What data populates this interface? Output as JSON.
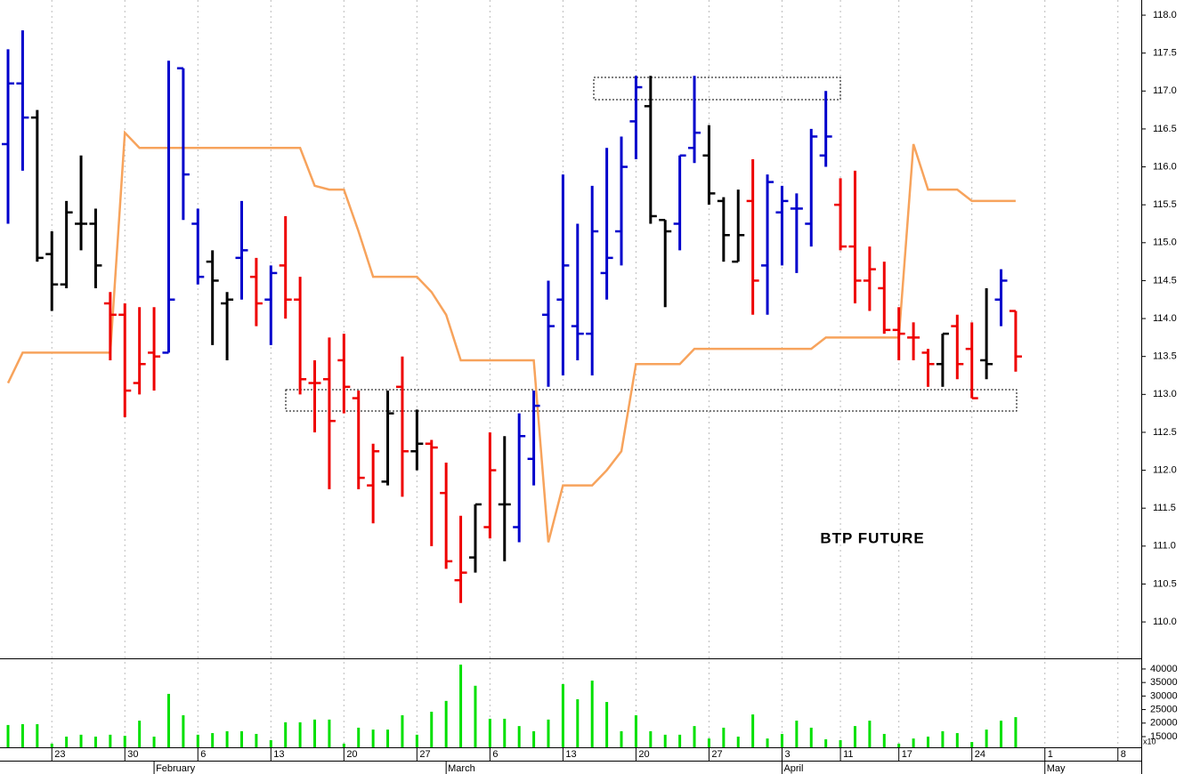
{
  "chart_data": [
    {
      "type": "ohlc",
      "annotation": "BTP FUTURE",
      "open": [
        116.3,
        117.1,
        116.65,
        114.85,
        114.45,
        115.25,
        115.25,
        114.2,
        114.05,
        113.15,
        113.55,
        113.55,
        117.3,
        115.25,
        114.75,
        114.2,
        114.8,
        114.55,
        114.25,
        114.7,
        114.25,
        113.15,
        113.2,
        113.45,
        112.95,
        111.8,
        111.85,
        113.1,
        112.25,
        112.35,
        111.7,
        110.55,
        110.85,
        111.25,
        111.55,
        111.25,
        112.15,
        114.05,
        114.25,
        113.9,
        113.8,
        114.6,
        115.15,
        116.6,
        116.8,
        115.3,
        115.25,
        116.25,
        116.15,
        115.55,
        114.75,
        115.55,
        114.7,
        115.4,
        115.45,
        115.25,
        116.15,
        115.5,
        114.95,
        114.5,
        114.4,
        113.85,
        113.75,
        113.55,
        113.4,
        113.9,
        113.6,
        113.45,
        114.25,
        114.1
      ],
      "high": [
        117.55,
        117.8,
        116.75,
        115.15,
        115.55,
        116.15,
        115.45,
        114.35,
        114.2,
        114.15,
        114.15,
        117.4,
        117.3,
        115.45,
        114.9,
        114.35,
        115.55,
        114.8,
        114.7,
        115.35,
        114.55,
        113.45,
        113.75,
        113.8,
        113.05,
        112.35,
        113.05,
        113.5,
        112.8,
        112.4,
        112.1,
        111.4,
        111.55,
        112.5,
        112.45,
        112.75,
        113.05,
        114.5,
        115.9,
        115.25,
        115.75,
        116.25,
        116.4,
        117.2,
        117.2,
        115.3,
        116.15,
        117.2,
        116.55,
        115.6,
        115.7,
        116.1,
        115.9,
        115.75,
        115.65,
        116.5,
        117,
        115.85,
        115.95,
        114.95,
        114.75,
        114.15,
        113.95,
        113.6,
        113.8,
        114.05,
        113.95,
        114.4,
        114.65,
        114.1
      ],
      "low": [
        115.25,
        115.95,
        114.75,
        114.1,
        114.4,
        114.9,
        114.4,
        113.45,
        112.7,
        113,
        113.05,
        113.55,
        115.3,
        114.45,
        113.65,
        113.45,
        114.25,
        113.9,
        113.65,
        114,
        113,
        112.5,
        111.75,
        112.75,
        111.75,
        111.3,
        111.8,
        111.65,
        112,
        111,
        110.7,
        110.25,
        110.65,
        111.1,
        110.8,
        111.05,
        111.8,
        113.1,
        113.25,
        113.45,
        113.25,
        114.25,
        114.7,
        116.1,
        115.25,
        114.15,
        114.9,
        116.05,
        115.5,
        114.75,
        114.75,
        114.05,
        114.05,
        114.7,
        114.6,
        114.95,
        116,
        114.9,
        114.2,
        114.1,
        113.8,
        113.45,
        113.45,
        113.1,
        113.1,
        113.2,
        112.95,
        113.2,
        113.9,
        113.3
      ],
      "close": [
        117.1,
        116.65,
        114.8,
        114.45,
        115.4,
        115.25,
        114.7,
        114.05,
        113.05,
        113.4,
        113.5,
        114.25,
        115.9,
        114.55,
        114.5,
        114.25,
        114.9,
        114.2,
        114.6,
        114.25,
        113.2,
        113.15,
        112.65,
        113.1,
        111.9,
        112.25,
        112.75,
        112.25,
        112.35,
        112.3,
        110.8,
        110.65,
        111.55,
        112,
        111.55,
        112.45,
        112.85,
        113.9,
        114.7,
        113.8,
        115.15,
        114.8,
        116,
        117.05,
        115.35,
        115.15,
        116.15,
        116.45,
        115.65,
        115.1,
        115.1,
        114.5,
        115.8,
        115.55,
        115.45,
        116.4,
        116.4,
        114.95,
        114.5,
        114.65,
        113.85,
        113.8,
        113.75,
        113.4,
        113.8,
        113.4,
        112.95,
        113.4,
        114.5,
        113.5
      ],
      "bar_colors": [
        "#0000cc",
        "#0000cc",
        "#000",
        "#000",
        "#000",
        "#000",
        "#000",
        "#e00",
        "#e00",
        "#e00",
        "#e00",
        "#0000cc",
        "#0000cc",
        "#0000cc",
        "#000",
        "#000",
        "#0000cc",
        "#e00",
        "#0000cc",
        "#e00",
        "#e00",
        "#e00",
        "#e00",
        "#e00",
        "#e00",
        "#e00",
        "#000",
        "#e00",
        "#000",
        "#e00",
        "#e00",
        "#e00",
        "#000",
        "#e00",
        "#000",
        "#0000cc",
        "#0000cc",
        "#0000cc",
        "#0000cc",
        "#0000cc",
        "#0000cc",
        "#0000cc",
        "#0000cc",
        "#0000cc",
        "#000",
        "#000",
        "#0000cc",
        "#0000cc",
        "#000",
        "#000",
        "#000",
        "#e00",
        "#0000cc",
        "#0000cc",
        "#0000cc",
        "#0000cc",
        "#0000cc",
        "#e00",
        "#e00",
        "#e00",
        "#e00",
        "#e00",
        "#e00",
        "#e00",
        "#000",
        "#e00",
        "#e00",
        "#000",
        "#0000cc",
        "#e00"
      ],
      "line": {
        "color": "#f7a35c",
        "values": [
          113.15,
          113.55,
          113.55,
          113.55,
          113.55,
          113.55,
          113.55,
          113.55,
          116.45,
          116.25,
          116.25,
          116.25,
          116.25,
          116.25,
          116.25,
          116.25,
          116.25,
          116.25,
          116.25,
          116.25,
          116.25,
          115.75,
          115.7,
          115.7,
          115.15,
          114.55,
          114.55,
          114.55,
          114.55,
          114.35,
          114.05,
          113.45,
          113.45,
          113.45,
          113.45,
          113.45,
          113.45,
          111.05,
          111.8,
          111.8,
          111.8,
          112,
          112.25,
          113.4,
          113.4,
          113.4,
          113.4,
          113.6,
          113.6,
          113.6,
          113.6,
          113.6,
          113.6,
          113.6,
          113.6,
          113.6,
          113.75,
          113.75,
          113.75,
          113.75,
          113.75,
          113.75,
          116.3,
          115.7,
          115.7,
          115.7,
          115.55,
          115.55,
          115.55,
          115.55
        ]
      },
      "ylim": [
        109.52,
        118.2
      ],
      "yticks": [
        {
          "value": 110,
          "label": "110.0"
        },
        110.5,
        {
          "value": 111,
          "label": "111.0"
        },
        111.5,
        {
          "value": 112,
          "label": "112.0"
        },
        112.5,
        {
          "value": 113,
          "label": "113.0"
        },
        113.5,
        {
          "value": 114,
          "label": "114.0"
        },
        114.5,
        {
          "value": 115,
          "label": "115.0"
        },
        115.5,
        {
          "value": 116,
          "label": "116.0"
        },
        116.5,
        {
          "value": 117,
          "label": "117.0"
        },
        117.5,
        {
          "value": 118,
          "label": "118.0"
        }
      ],
      "xlim": [
        -0.55,
        77.6
      ],
      "xticks": [
        {
          "value": 3,
          "label": "23"
        },
        {
          "value": 8,
          "label": "30"
        },
        {
          "value": 13,
          "label": "6"
        },
        {
          "value": 18,
          "label": "13"
        },
        {
          "value": 23,
          "label": "20"
        },
        {
          "value": 28,
          "label": "27"
        },
        {
          "value": 33,
          "label": "6"
        },
        {
          "value": 38,
          "label": "13"
        },
        {
          "value": 43,
          "label": "20"
        },
        {
          "value": 48,
          "label": "27"
        },
        {
          "value": 53,
          "label": "3"
        },
        {
          "value": 57,
          "label": "11"
        },
        {
          "value": 61,
          "label": "17"
        },
        {
          "value": 66,
          "label": "24"
        },
        {
          "value": 71,
          "label": "1"
        },
        {
          "value": 76,
          "label": "8"
        }
      ],
      "month_ticks": [
        {
          "value": 10,
          "label": "February"
        },
        {
          "value": 30,
          "label": "March"
        },
        {
          "value": 53,
          "label": "April"
        },
        {
          "value": 71,
          "label": "May"
        }
      ],
      "grid": true
    },
    {
      "type": "bar",
      "color": "#00e000",
      "unit_label": "x10",
      "values": [
        19300,
        19600,
        19600,
        12400,
        15000,
        15700,
        15000,
        15700,
        15300,
        20900,
        15000,
        30800,
        22900,
        15700,
        16300,
        17000,
        17000,
        16000,
        13700,
        20300,
        20300,
        21300,
        21300,
        12400,
        18300,
        17600,
        17600,
        22900,
        15700,
        24200,
        28200,
        41600,
        33800,
        21600,
        21600,
        18900,
        17000,
        21300,
        34400,
        28800,
        35700,
        27800,
        17000,
        22900,
        17000,
        15700,
        15700,
        18900,
        14300,
        18300,
        15000,
        23200,
        14300,
        16000,
        20900,
        18300,
        14000,
        13700,
        18900,
        20900,
        16000,
        12400,
        14300,
        15000,
        17000,
        16300,
        13000,
        17600,
        20900,
        22200
      ],
      "ylim": [
        11050,
        43600
      ],
      "yticks": [
        15000,
        20000,
        25000,
        30000,
        35000,
        40000
      ]
    }
  ]
}
